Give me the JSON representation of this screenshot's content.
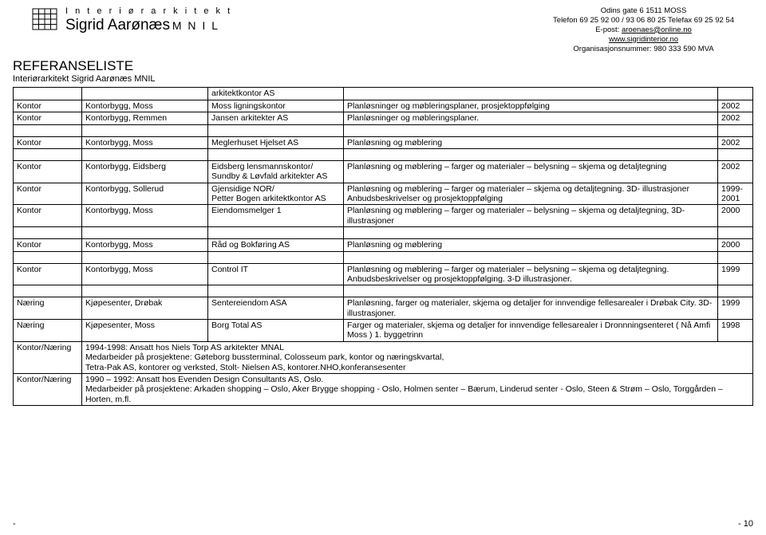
{
  "header": {
    "role": "I n t e r i ø r a r k i t e k t",
    "name": "Sigrid Aarønæs",
    "suffix": "M N I L",
    "contact": {
      "l1": "Odins gate 6   1511 MOSS",
      "l2": "Telefon  69 25 92 00 / 93 06 80 25  Telefax  69 25 92 54",
      "l3a": "E-post: ",
      "l3b": "aroenaes@online.no",
      "l4": "www.sigridinterior.no",
      "l5": "Organisasjonsnummer: 980 333 590 MVA"
    }
  },
  "title": {
    "main": "REFERANSELISTE",
    "sub": "Interiørarkitekt Sigrid Aarønæs MNIL"
  },
  "rows": [
    {
      "c1": "",
      "c2": "",
      "c3": "arkitektkontor AS",
      "c4": "",
      "c5": ""
    },
    {
      "c1": "Kontor",
      "c2": "Kontorbygg, Moss",
      "c3": "Moss ligningskontor",
      "c4": "Planløsninger og møbleringsplaner, prosjektoppfølging",
      "c5": "2002"
    },
    {
      "c1": "Kontor",
      "c2": "Kontorbygg, Remmen",
      "c3": "Jansen arkitekter AS",
      "c4": "Planløsninger og møbleringsplaner.",
      "c5": "2002"
    },
    {
      "spacer": true
    },
    {
      "c1": "Kontor",
      "c2": "Kontorbygg, Moss",
      "c3": "Meglerhuset Hjelset AS",
      "c4": "Planløsning og møblering",
      "c5": "2002"
    },
    {
      "spacer": true
    },
    {
      "c1": "Kontor",
      "c2": "Kontorbygg, Eidsberg",
      "c3": "Eidsberg lensmannskontor/\nSundby & Løvfald arkitekter AS",
      "c4": "Planløsning og møblering – farger og materialer – belysning – skjema og detaljtegning",
      "c5": "2002"
    },
    {
      "c1": "Kontor",
      "c2": "Kontorbygg, Sollerud",
      "c3": "Gjensidige NOR/\nPetter Bogen arkitektkontor AS",
      "c4": "Planløsning og møblering – farger og materialer – skjema og detaljtegning. 3D- illustrasjoner\nAnbudsbeskrivelser og prosjektoppfølging",
      "c5": "1999-\n2001"
    },
    {
      "c1": "Kontor",
      "c2": "Kontorbygg, Moss",
      "c3": "Eiendomsmelger 1",
      "c4": "Planløsning og møblering – farger og materialer – belysning – skjema og detaljtegning, 3D- illustrasjoner",
      "c5": "2000"
    },
    {
      "spacer": true
    },
    {
      "c1": "Kontor",
      "c2": "Kontorbygg, Moss",
      "c3": "Råd og Bokføring AS",
      "c4": "Planløsning og møblering",
      "c5": "2000"
    },
    {
      "spacer": true
    },
    {
      "c1": "Kontor",
      "c2": "Kontorbygg, Moss",
      "c3": "Control IT",
      "c4": "Planløsning og møblering – farger og materialer – belysning – skjema og detaljtegning. Anbudsbeskrivelser og prosjektoppfølging. 3-D illustrasjoner.",
      "c5": "1999"
    },
    {
      "spacer": true
    },
    {
      "c1": "Næring",
      "c2": "Kjøpesenter, Drøbak",
      "c3": "Sentereiendom ASA",
      "c4": "Planløsning, farger og materialer, skjema og detaljer for innvendige fellesarealer i  Drøbak City. 3D- illustrasjoner.",
      "c5": "1999"
    },
    {
      "c1": "Næring",
      "c2": "Kjøpesenter, Moss",
      "c3": "Borg Total AS",
      "c4": "Farger og materialer, skjema og detaljer for   innvendige fellesarealer i Dronnningsenteret ( Nå Amfi Moss ) 1. byggetrinn",
      "c5": "1998"
    },
    {
      "c1": "Kontor/Næring",
      "c234": "1994-1998: Ansatt hos Niels Torp AS arkitekter MNAL\nMedarbeider på prosjektene: Gøteborg bussterminal, Colosseum park, kontor og næringskvartal,\nTetra-Pak AS, kontorer og verksted, Stolt- Nielsen AS, kontorer.NHO,konferansesenter"
    },
    {
      "c1": "Kontor/Næring",
      "c234": "1990 – 1992: Ansatt hos Evenden Design Consultants AS, Oslo.\nMedarbeider på prosjektene: Arkaden shopping – Oslo, Aker Brygge shopping - Oslo, Holmen senter – Bærum, Linderud senter - Oslo, Steen & Strøm – Oslo, Torggården – Horten, m.fl."
    }
  ],
  "footer": {
    "page": "- 10",
    "dash": "-"
  }
}
